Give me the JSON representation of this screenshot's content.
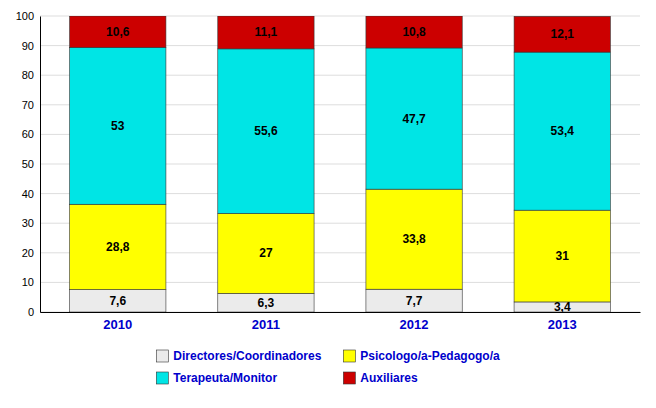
{
  "chart_data": {
    "type": "bar",
    "stacked": true,
    "categories": [
      "2010",
      "2011",
      "2012",
      "2013"
    ],
    "series": [
      {
        "name": "Directores/Coordinadores",
        "color": "#ebebeb",
        "values": [
          7.6,
          6.3,
          7.7,
          3.4
        ],
        "value_labels": [
          "7,6",
          "6,3",
          "7,7",
          "3,4"
        ]
      },
      {
        "name": "Psicologo/a-Pedagogo/a",
        "color": "#ffff00",
        "values": [
          28.8,
          27.0,
          33.8,
          31.0
        ],
        "value_labels": [
          "28,8",
          "27",
          "33,8",
          "31"
        ]
      },
      {
        "name": "Terapeuta/Monitor",
        "color": "#00e5e5",
        "values": [
          53.0,
          55.6,
          47.7,
          53.4
        ],
        "value_labels": [
          "53",
          "55,6",
          "47,7",
          "53,4"
        ]
      },
      {
        "name": "Auxiliares",
        "color": "#cc0000",
        "values": [
          10.6,
          11.1,
          10.8,
          12.1
        ],
        "value_labels": [
          "10,6",
          "11,1",
          "10,8",
          "12,1"
        ]
      }
    ],
    "ylim": [
      0,
      100
    ],
    "yticks": [
      0,
      10,
      20,
      30,
      40,
      50,
      60,
      70,
      80,
      90,
      100
    ],
    "grid": true,
    "data_labels": true,
    "legend": "bottom"
  }
}
